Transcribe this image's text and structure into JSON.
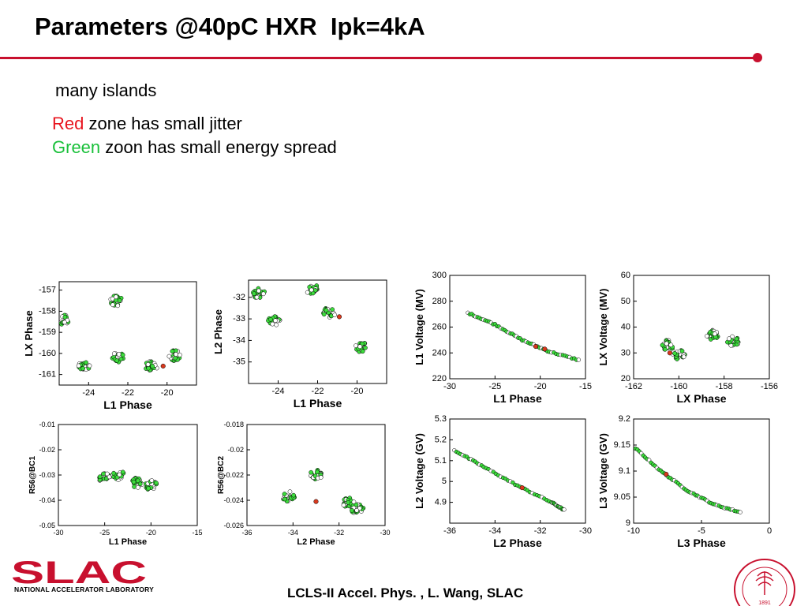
{
  "header": {
    "title": "Parameters @40pC HXR  Ipk=4kA"
  },
  "bullets": {
    "line1": "many islands",
    "line2_colored": "Red",
    "line2_rest": " zone has small jitter",
    "line3_colored": "Green",
    "line3_rest": " zoon has small energy spread"
  },
  "colors": {
    "accent": "#c8102e",
    "red": "#e8141e",
    "green": "#19c03a",
    "point_green": "#3cdc3c",
    "point_red": "#d8391e"
  },
  "footer": {
    "credit": "LCLS-II Accel. Phys. , L. Wang, SLAC",
    "logo_text": "SLAC",
    "logo_subtitle": "NATIONAL ACCELERATOR LABORATORY",
    "seal_year": "1891"
  },
  "chart_data": [
    {
      "id": "p1",
      "type": "scatter",
      "xlabel": "L1 Phase",
      "ylabel": "LX Phase",
      "xlim": [
        -25.5,
        -18.5
      ],
      "ylim": [
        -161.5,
        -156.6
      ],
      "xticks": [
        -24,
        -22,
        -20
      ],
      "yticks": [
        -157,
        -158,
        -159,
        -160,
        -161
      ],
      "clusters": [
        {
          "x": -25.3,
          "y": -158.4
        },
        {
          "x": -24.2,
          "y": -160.6
        },
        {
          "x": -22.6,
          "y": -157.5
        },
        {
          "x": -22.5,
          "y": -160.2
        },
        {
          "x": -20.8,
          "y": -160.6
        },
        {
          "x": -19.6,
          "y": -160.1
        }
      ],
      "red_points": [
        {
          "x": -20.2,
          "y": -160.6
        }
      ]
    },
    {
      "id": "p2",
      "type": "scatter",
      "xlabel": "L1 Phase",
      "ylabel": "L2 Phase",
      "xlim": [
        -25.5,
        -18.5
      ],
      "ylim": [
        -36,
        -31.2
      ],
      "xticks": [
        -24,
        -22,
        -20
      ],
      "yticks": [
        -32,
        -33,
        -34,
        -35
      ],
      "clusters": [
        {
          "x": -25.0,
          "y": -31.8
        },
        {
          "x": -22.3,
          "y": -31.6
        },
        {
          "x": -24.2,
          "y": -33.1
        },
        {
          "x": -21.4,
          "y": -32.7
        },
        {
          "x": -19.8,
          "y": -34.3
        }
      ],
      "red_points": [
        {
          "x": -20.9,
          "y": -32.9
        }
      ]
    },
    {
      "id": "p3",
      "type": "scatter",
      "xlabel": "L1 Phase",
      "ylabel": "L1 Voltage (MV)",
      "xlim": [
        -30,
        -15
      ],
      "ylim": [
        220,
        300
      ],
      "xticks": [
        -30,
        -25,
        -20,
        -15
      ],
      "yticks": [
        300,
        280,
        260,
        240,
        220
      ],
      "curve": [
        {
          "x": -28,
          "y": 271
        },
        {
          "x": -25,
          "y": 262
        },
        {
          "x": -22,
          "y": 250
        },
        {
          "x": -19,
          "y": 241
        },
        {
          "x": -15.5,
          "y": 234
        }
      ],
      "red_points": [
        {
          "x": -20.5,
          "y": 245
        },
        {
          "x": -19.5,
          "y": 243
        }
      ]
    },
    {
      "id": "p4",
      "type": "scatter",
      "xlabel": "LX Phase",
      "ylabel": "LX Voltage (MV)",
      "xlim": [
        -162,
        -156
      ],
      "ylim": [
        20,
        60
      ],
      "xticks": [
        -162,
        -160,
        -158,
        -156
      ],
      "yticks": [
        60,
        50,
        40,
        30,
        20
      ],
      "clusters": [
        {
          "x": -160.5,
          "y": 33
        },
        {
          "x": -160.0,
          "y": 29.5
        },
        {
          "x": -158.5,
          "y": 37
        },
        {
          "x": -157.6,
          "y": 34.5
        }
      ],
      "red_points": [
        {
          "x": -160.4,
          "y": 30
        }
      ]
    },
    {
      "id": "p5",
      "type": "scatter",
      "xlabel": "L1 Phase",
      "ylabel": "R56@BC1",
      "xlim": [
        -30,
        -15
      ],
      "ylim": [
        -0.05,
        -0.01
      ],
      "xticks": [
        -30,
        -25,
        -20,
        -15
      ],
      "yticks": [
        -0.01,
        -0.02,
        -0.03,
        -0.04,
        -0.05
      ],
      "clusters": [
        {
          "x": -25,
          "y": -0.031
        },
        {
          "x": -23.5,
          "y": -0.03
        },
        {
          "x": -21.5,
          "y": -0.033
        },
        {
          "x": -20,
          "y": -0.034
        }
      ],
      "red_points": []
    },
    {
      "id": "p6",
      "type": "scatter",
      "xlabel": "L2 Phase",
      "ylabel": "R56@BC2",
      "xlim": [
        -36,
        -30
      ],
      "ylim": [
        -0.026,
        -0.018
      ],
      "xticks": [
        -36,
        -34,
        -32,
        -30
      ],
      "yticks": [
        -0.018,
        -0.02,
        -0.022,
        -0.024,
        -0.026
      ],
      "clusters": [
        {
          "x": -34.2,
          "y": -0.0237
        },
        {
          "x": -33,
          "y": -0.022
        },
        {
          "x": -31.6,
          "y": -0.0242
        },
        {
          "x": -31.2,
          "y": -0.0247
        }
      ],
      "red_points": [
        {
          "x": -33,
          "y": -0.0241
        }
      ]
    },
    {
      "id": "p7",
      "type": "scatter",
      "xlabel": "L2 Phase",
      "ylabel": "L2 Voltage (GV)",
      "xlim": [
        -36,
        -30
      ],
      "ylim": [
        4.8,
        5.3
      ],
      "xticks": [
        -36,
        -34,
        -32,
        -30
      ],
      "yticks": [
        5.3,
        5.2,
        5.1,
        5,
        4.9
      ],
      "curve": [
        {
          "x": -35.8,
          "y": 5.15
        },
        {
          "x": -34.5,
          "y": 5.07
        },
        {
          "x": -33,
          "y": 4.98
        },
        {
          "x": -31.5,
          "y": 4.9
        },
        {
          "x": -30.9,
          "y": 4.86
        }
      ],
      "red_points": [
        {
          "x": -32.8,
          "y": 4.97
        }
      ]
    },
    {
      "id": "p8",
      "type": "scatter",
      "xlabel": "L3 Phase",
      "ylabel": "L3 Voltage (GV)",
      "xlim": [
        -10,
        0
      ],
      "ylim": [
        9,
        9.2
      ],
      "xticks": [
        -10,
        -5,
        0
      ],
      "yticks": [
        9.2,
        9.15,
        9.1,
        9.05,
        9
      ],
      "curve": [
        {
          "x": -10,
          "y": 9.147
        },
        {
          "x": -8,
          "y": 9.1
        },
        {
          "x": -6,
          "y": 9.062
        },
        {
          "x": -4,
          "y": 9.035
        },
        {
          "x": -2,
          "y": 9.02
        }
      ],
      "red_points": [
        {
          "x": -7.6,
          "y": 9.094
        }
      ]
    }
  ]
}
